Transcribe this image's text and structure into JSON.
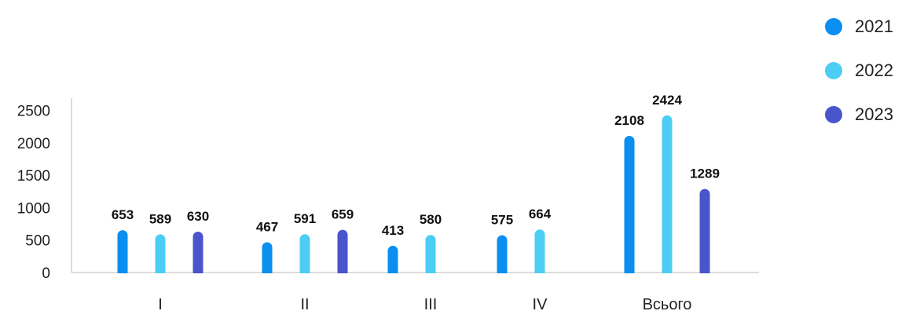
{
  "chart_data": {
    "type": "bar",
    "categories": [
      "I",
      "II",
      "III",
      "IV",
      "Всього"
    ],
    "yticks": [
      "0",
      "500",
      "1000",
      "1500",
      "2000",
      "2500"
    ],
    "ylim": [
      0,
      2750
    ],
    "legend_position": "top-right",
    "grid": false,
    "series": [
      {
        "name": "2021",
        "color": "#0a8ef0",
        "values": [
          653,
          467,
          413,
          575,
          2108
        ]
      },
      {
        "name": "2022",
        "color": "#4ccdf3",
        "values": [
          589,
          591,
          580,
          664,
          2424
        ]
      },
      {
        "name": "2023",
        "color": "#4a55cc",
        "values": [
          630,
          659,
          null,
          null,
          1289
        ]
      }
    ]
  }
}
